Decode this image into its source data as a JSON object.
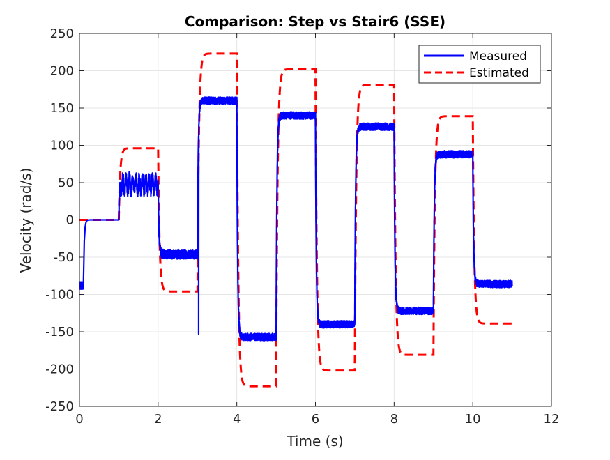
{
  "chart_data": {
    "type": "line",
    "title": "Comparison: Step vs Stair6 (SSE)",
    "xlabel": "Time (s)",
    "ylabel": "Velocity (rad/s)",
    "xlim": [
      0,
      12
    ],
    "ylim": [
      -250,
      250
    ],
    "xticks": [
      0,
      2,
      4,
      6,
      8,
      10,
      12
    ],
    "yticks": [
      -250,
      -200,
      -150,
      -100,
      -50,
      0,
      50,
      100,
      150,
      200,
      250
    ],
    "grid": true,
    "legend_position": "top-right",
    "series": [
      {
        "name": "Measured",
        "color": "#0000ff",
        "style": "solid",
        "segments": [
          {
            "start": 0.0,
            "end": 0.1,
            "level": -88,
            "noise": 6
          },
          {
            "start": 0.1,
            "end": 1.0,
            "level": 0,
            "noise": 0
          },
          {
            "start": 1.0,
            "end": 2.0,
            "level": 48,
            "noise": 10
          },
          {
            "start": 2.0,
            "end": 3.0,
            "level": -46,
            "noise": 8
          },
          {
            "start": 3.0,
            "end": 4.0,
            "level": 160,
            "noise": 6
          },
          {
            "start": 4.0,
            "end": 5.0,
            "level": -157,
            "noise": 6
          },
          {
            "start": 5.0,
            "end": 6.0,
            "level": 140,
            "noise": 6
          },
          {
            "start": 6.0,
            "end": 7.0,
            "level": -140,
            "noise": 6
          },
          {
            "start": 7.0,
            "end": 8.0,
            "level": 125,
            "noise": 6
          },
          {
            "start": 8.0,
            "end": 9.0,
            "level": -122,
            "noise": 6
          },
          {
            "start": 9.0,
            "end": 10.0,
            "level": 88,
            "noise": 6
          },
          {
            "start": 10.0,
            "end": 11.0,
            "level": -86,
            "noise": 6
          }
        ],
        "spikes": [
          {
            "x": 3.03,
            "y": -153
          }
        ]
      },
      {
        "name": "Estimated",
        "color": "#ff0000",
        "style": "dashed",
        "segments": [
          {
            "start": 0.0,
            "end": 1.0,
            "level": 0
          },
          {
            "start": 1.0,
            "end": 2.0,
            "level": 96
          },
          {
            "start": 2.0,
            "end": 3.0,
            "level": -96
          },
          {
            "start": 3.0,
            "end": 4.0,
            "level": 223
          },
          {
            "start": 4.0,
            "end": 5.0,
            "level": -223
          },
          {
            "start": 5.0,
            "end": 6.0,
            "level": 202
          },
          {
            "start": 6.0,
            "end": 7.0,
            "level": -202
          },
          {
            "start": 7.0,
            "end": 8.0,
            "level": 181
          },
          {
            "start": 8.0,
            "end": 9.0,
            "level": -181
          },
          {
            "start": 9.0,
            "end": 10.0,
            "level": 139
          },
          {
            "start": 10.0,
            "end": 11.0,
            "level": -139
          }
        ]
      }
    ]
  }
}
